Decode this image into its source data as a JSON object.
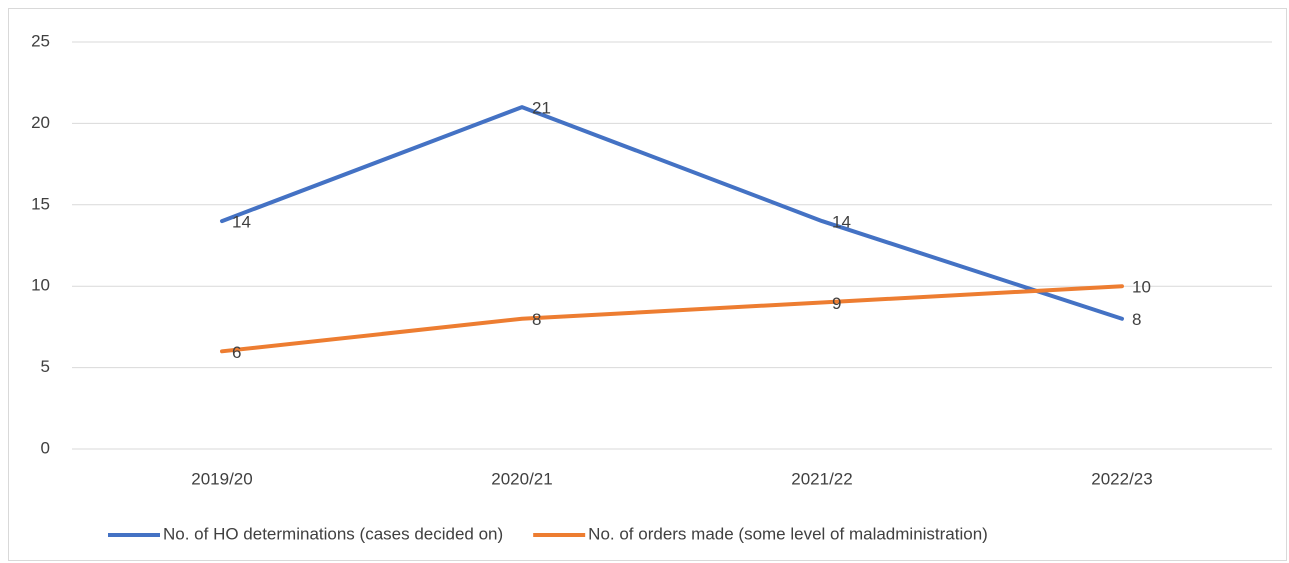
{
  "chart_data": {
    "type": "line",
    "categories": [
      "2019/20",
      "2020/21",
      "2021/22",
      "2022/23"
    ],
    "series": [
      {
        "name": "No. of HO determinations (cases decided on)",
        "color": "#4472c4",
        "values": [
          14,
          21,
          14,
          8
        ]
      },
      {
        "name": "No. of orders made (some level of maladministration)",
        "color": "#ed7d31",
        "values": [
          6,
          8,
          9,
          10
        ]
      }
    ],
    "ylim": [
      0,
      25
    ],
    "yticks": [
      0,
      5,
      10,
      15,
      20,
      25
    ],
    "grid": true,
    "legend": "bottom",
    "data_labels": true
  }
}
